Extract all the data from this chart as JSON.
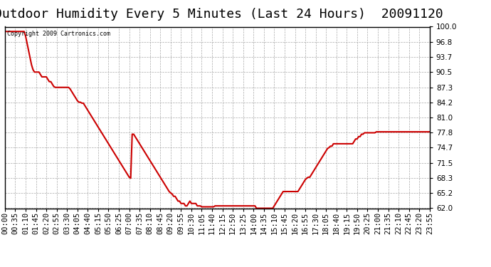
{
  "title": "Outdoor Humidity Every 5 Minutes (Last 24 Hours)  20091120",
  "copyright_text": "Copyright 2009 Cartronics.com",
  "line_color": "#cc0000",
  "background_color": "#ffffff",
  "plot_bg_color": "#ffffff",
  "grid_color": "#aaaaaa",
  "ylim": [
    62.0,
    100.0
  ],
  "yticks": [
    62.0,
    65.2,
    68.3,
    71.5,
    74.7,
    77.8,
    81.0,
    84.2,
    87.3,
    90.5,
    93.7,
    96.8,
    100.0
  ],
  "title_fontsize": 13,
  "tick_fontsize": 7.5,
  "line_width": 1.5,
  "xtick_labels": [
    "00:00",
    "00:35",
    "01:10",
    "01:45",
    "02:20",
    "02:55",
    "03:30",
    "04:05",
    "04:40",
    "05:15",
    "05:50",
    "06:25",
    "07:00",
    "07:35",
    "08:10",
    "08:45",
    "09:20",
    "09:55",
    "10:30",
    "11:05",
    "11:40",
    "12:15",
    "12:50",
    "13:25",
    "14:00",
    "14:35",
    "15:10",
    "15:45",
    "16:20",
    "16:55",
    "17:30",
    "18:05",
    "18:40",
    "19:15",
    "19:50",
    "20:25",
    "21:00",
    "21:35",
    "22:10",
    "22:45",
    "23:20",
    "23:55"
  ],
  "humidity_data": [
    99.0,
    99.0,
    99.0,
    99.0,
    99.0,
    99.0,
    99.0,
    99.0,
    99.0,
    99.0,
    99.0,
    99.0,
    99.0,
    99.0,
    98.0,
    96.5,
    95.0,
    93.5,
    92.0,
    91.0,
    90.5,
    90.5,
    90.5,
    90.5,
    90.0,
    89.5,
    89.5,
    89.5,
    89.5,
    89.0,
    88.5,
    88.5,
    88.0,
    87.5,
    87.3,
    87.3,
    87.3,
    87.3,
    87.3,
    87.3,
    87.3,
    87.3,
    87.3,
    87.3,
    87.0,
    86.5,
    86.0,
    85.5,
    85.0,
    84.5,
    84.2,
    84.2,
    84.0,
    84.0,
    83.5,
    83.0,
    82.5,
    82.0,
    81.5,
    81.0,
    80.5,
    80.0,
    79.5,
    79.0,
    78.5,
    78.0,
    77.5,
    77.0,
    76.5,
    76.0,
    75.5,
    75.0,
    74.5,
    74.0,
    73.5,
    73.0,
    72.5,
    72.0,
    71.5,
    71.0,
    70.5,
    70.0,
    69.5,
    69.0,
    68.5,
    68.3,
    77.5,
    77.5,
    77.0,
    76.5,
    76.0,
    75.5,
    75.0,
    74.5,
    74.0,
    73.5,
    73.0,
    72.5,
    72.0,
    71.5,
    71.0,
    70.5,
    70.0,
    69.5,
    69.0,
    68.5,
    68.0,
    67.5,
    67.0,
    66.5,
    66.0,
    65.5,
    65.2,
    65.0,
    64.5,
    64.5,
    64.0,
    63.5,
    63.5,
    63.0,
    63.0,
    63.0,
    62.5,
    62.5,
    63.0,
    63.5,
    63.0,
    63.0,
    63.0,
    63.0,
    62.5,
    62.5,
    62.5,
    62.3,
    62.3,
    62.3,
    62.3,
    62.3,
    62.3,
    62.3,
    62.3,
    62.3,
    62.5,
    62.5,
    62.5,
    62.5,
    62.5,
    62.5,
    62.5,
    62.5,
    62.5,
    62.5,
    62.5,
    62.5,
    62.5,
    62.5,
    62.5,
    62.5,
    62.5,
    62.5,
    62.5,
    62.5,
    62.5,
    62.5,
    62.5,
    62.5,
    62.5,
    62.5,
    62.5,
    62.5,
    62.0,
    62.0,
    62.0,
    62.0,
    62.0,
    62.0,
    62.0,
    62.0,
    62.0,
    62.0,
    62.0,
    62.0,
    62.5,
    63.0,
    63.5,
    64.0,
    64.5,
    65.0,
    65.5,
    65.5,
    65.5,
    65.5,
    65.5,
    65.5,
    65.5,
    65.5,
    65.5,
    65.5,
    65.5,
    66.0,
    66.5,
    67.0,
    67.5,
    68.0,
    68.3,
    68.5,
    68.5,
    69.0,
    69.5,
    70.0,
    70.5,
    71.0,
    71.5,
    72.0,
    72.5,
    73.0,
    73.5,
    74.0,
    74.5,
    74.7,
    75.0,
    75.0,
    75.5,
    75.5,
    75.5,
    75.5,
    75.5,
    75.5,
    75.5,
    75.5,
    75.5,
    75.5,
    75.5,
    75.5,
    75.5,
    75.5,
    76.0,
    76.5,
    76.5,
    77.0,
    77.0,
    77.5,
    77.5,
    77.8,
    77.8,
    77.8,
    77.8,
    77.8,
    77.8,
    77.8,
    77.8,
    78.0,
    78.0,
    78.0,
    78.0,
    78.0,
    78.0,
    78.0,
    78.0,
    78.0,
    78.0,
    78.0,
    78.0,
    78.0,
    78.0,
    78.0,
    78.0,
    78.0,
    78.0,
    78.0,
    78.0,
    78.0,
    78.0,
    78.0,
    78.0,
    78.0,
    78.0,
    78.0,
    78.0,
    78.0,
    78.0,
    78.0,
    78.0,
    78.0,
    78.0,
    78.0,
    78.0,
    78.0
  ]
}
